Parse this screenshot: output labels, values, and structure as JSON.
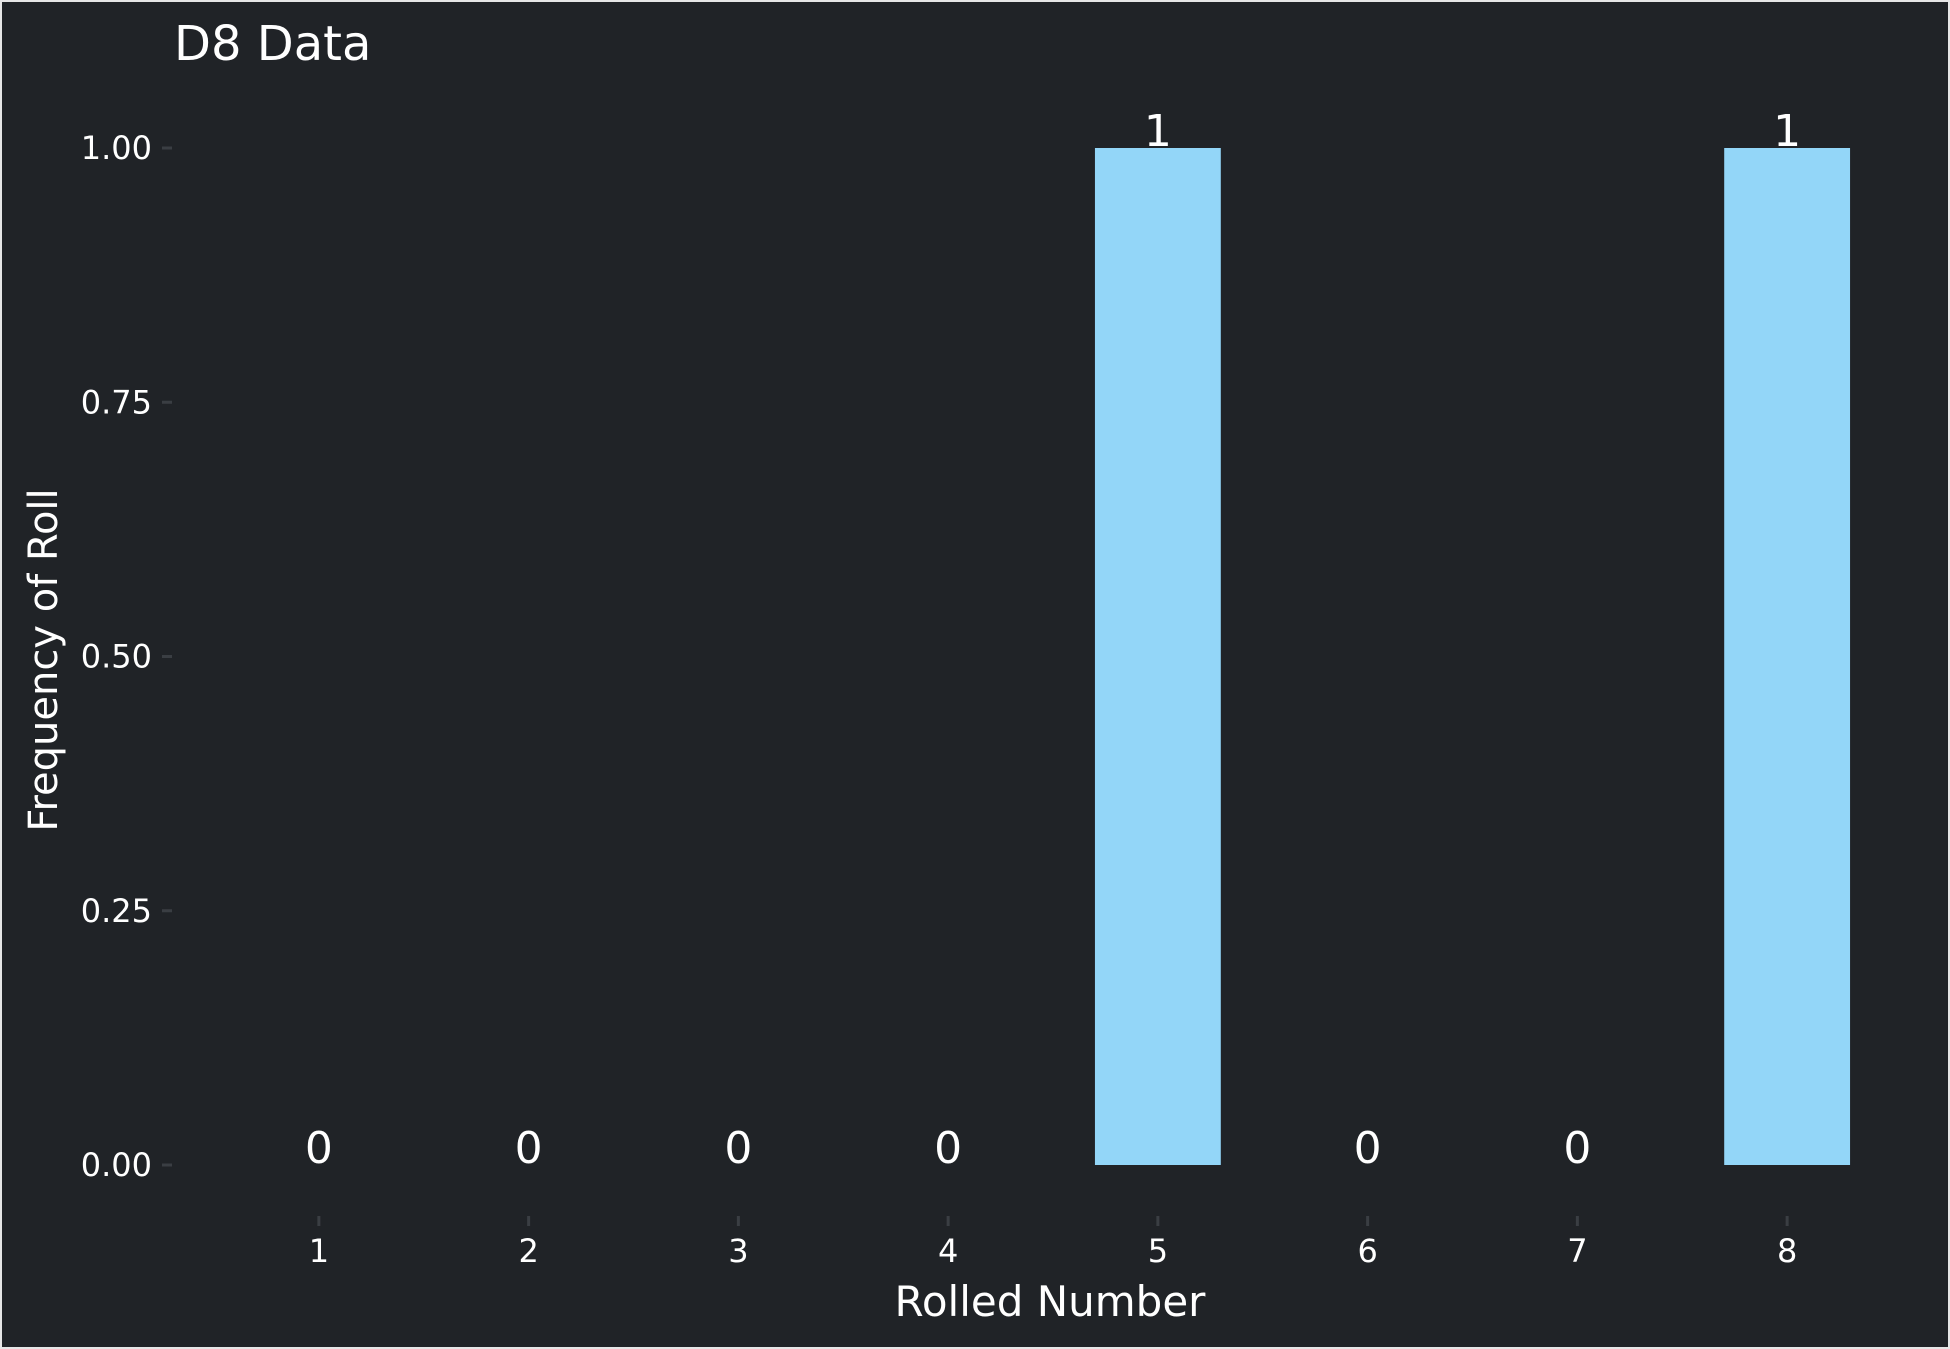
{
  "chart_data": {
    "type": "bar",
    "title": "D8 Data",
    "xlabel": "Rolled Number",
    "ylabel": "Frequency of Roll",
    "categories": [
      "1",
      "2",
      "3",
      "4",
      "5",
      "6",
      "7",
      "8"
    ],
    "values": [
      0,
      0,
      0,
      0,
      1,
      0,
      0,
      1
    ],
    "data_labels": [
      "0",
      "0",
      "0",
      "0",
      "1",
      "0",
      "0",
      "1"
    ],
    "y_ticks": [
      0,
      0.25,
      0.5,
      0.75,
      1.0
    ],
    "y_tick_labels": [
      "0.00",
      "0.25",
      "0.50",
      "0.75",
      "1.00"
    ],
    "ylim": [
      0,
      1
    ],
    "grid": false,
    "legend": "none",
    "colors": {
      "background": "#202327",
      "bar": "#93d6f8",
      "text": "#ffffff",
      "tick": "#3a3e43",
      "border": "#e6e6e6"
    }
  }
}
